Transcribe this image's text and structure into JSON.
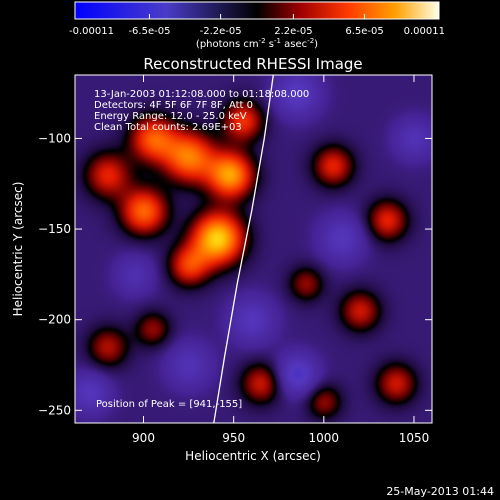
{
  "colorbar": {
    "tick_labels": [
      "-0.00011",
      "-6.5e-05",
      "-2.2e-05",
      "2.2e-05",
      "6.5e-05",
      "0.00011"
    ],
    "tick_values": [
      -0.00011,
      -6.5e-05,
      -2.2e-05,
      2.2e-05,
      6.5e-05,
      0.00011
    ],
    "range": [
      -0.00011,
      0.00011
    ],
    "units_prefix": "(photons cm",
    "units_sup1": "-2",
    "units_mid": " s",
    "units_sup2": "-1",
    "units_mid2": " asec",
    "units_sup3": "-2",
    "units_suffix": ")"
  },
  "chart_data": {
    "type": "heatmap",
    "title": "Reconstructed RHESSI Image",
    "xlabel": "Heliocentric X (arcsec)",
    "ylabel": "Heliocentric Y (arcsec)",
    "xlim": [
      862,
      1060
    ],
    "ylim": [
      -257,
      -65
    ],
    "x_ticks": [
      900,
      950,
      1000,
      1050
    ],
    "y_ticks": [
      -100,
      -150,
      -200,
      -250
    ],
    "colormap": "IDL color table 3 (red temperature) with blue for negative values",
    "annotations": [
      "13-Jan-2003 01:12:08.000 to 01:18:08.000",
      "Detectors: 4F 5F 6F 7F 8F, Att 0",
      "Energy Range: 12.0 - 25.0 keV",
      "Clean     Total counts: 2.69E+03"
    ],
    "peak_label": "Position of Peak = [941,-155]",
    "peak": {
      "x": 941,
      "y": -155
    },
    "limb_points": [
      [
        939,
        -257
      ],
      [
        945,
        -220
      ],
      [
        952,
        -180
      ],
      [
        960,
        -140
      ],
      [
        967,
        -100
      ],
      [
        972,
        -65
      ]
    ],
    "sources": [
      {
        "x": 941,
        "y": -155,
        "amp": 1.0,
        "w": 10
      },
      {
        "x": 948,
        "y": -120,
        "amp": 0.85,
        "w": 9
      },
      {
        "x": 925,
        "y": -110,
        "amp": 0.75,
        "w": 10
      },
      {
        "x": 905,
        "y": -100,
        "amp": 0.65,
        "w": 9
      },
      {
        "x": 900,
        "y": -140,
        "amp": 0.7,
        "w": 9
      },
      {
        "x": 925,
        "y": -170,
        "amp": 0.55,
        "w": 8
      },
      {
        "x": 880,
        "y": -120,
        "amp": 0.5,
        "w": 9
      },
      {
        "x": 955,
        "y": -90,
        "amp": 0.55,
        "w": 8
      },
      {
        "x": 1005,
        "y": -115,
        "amp": 0.5,
        "w": 8
      },
      {
        "x": 1035,
        "y": -145,
        "amp": 0.5,
        "w": 8
      },
      {
        "x": 1020,
        "y": -195,
        "amp": 0.45,
        "w": 8
      },
      {
        "x": 990,
        "y": -180,
        "amp": 0.35,
        "w": 7
      },
      {
        "x": 965,
        "y": -235,
        "amp": 0.45,
        "w": 8
      },
      {
        "x": 1040,
        "y": -235,
        "amp": 0.45,
        "w": 8
      },
      {
        "x": 880,
        "y": -215,
        "amp": 0.4,
        "w": 8
      },
      {
        "x": 905,
        "y": -205,
        "amp": 0.35,
        "w": 7
      },
      {
        "x": 1000,
        "y": -245,
        "amp": 0.35,
        "w": 7
      },
      {
        "x": 985,
        "y": -75,
        "amp": -0.4,
        "w": 9
      },
      {
        "x": 985,
        "y": -230,
        "amp": -0.45,
        "w": 8
      },
      {
        "x": 1010,
        "y": -155,
        "amp": -0.35,
        "w": 9
      },
      {
        "x": 960,
        "y": -200,
        "amp": -0.35,
        "w": 9
      },
      {
        "x": 870,
        "y": -240,
        "amp": -0.35,
        "w": 8
      },
      {
        "x": 925,
        "y": -225,
        "amp": -0.3,
        "w": 9
      },
      {
        "x": 1050,
        "y": -100,
        "amp": -0.3,
        "w": 8
      },
      {
        "x": 895,
        "y": -175,
        "amp": -0.25,
        "w": 8
      }
    ]
  },
  "footer": {
    "date": "25-May-2013 01:44"
  }
}
